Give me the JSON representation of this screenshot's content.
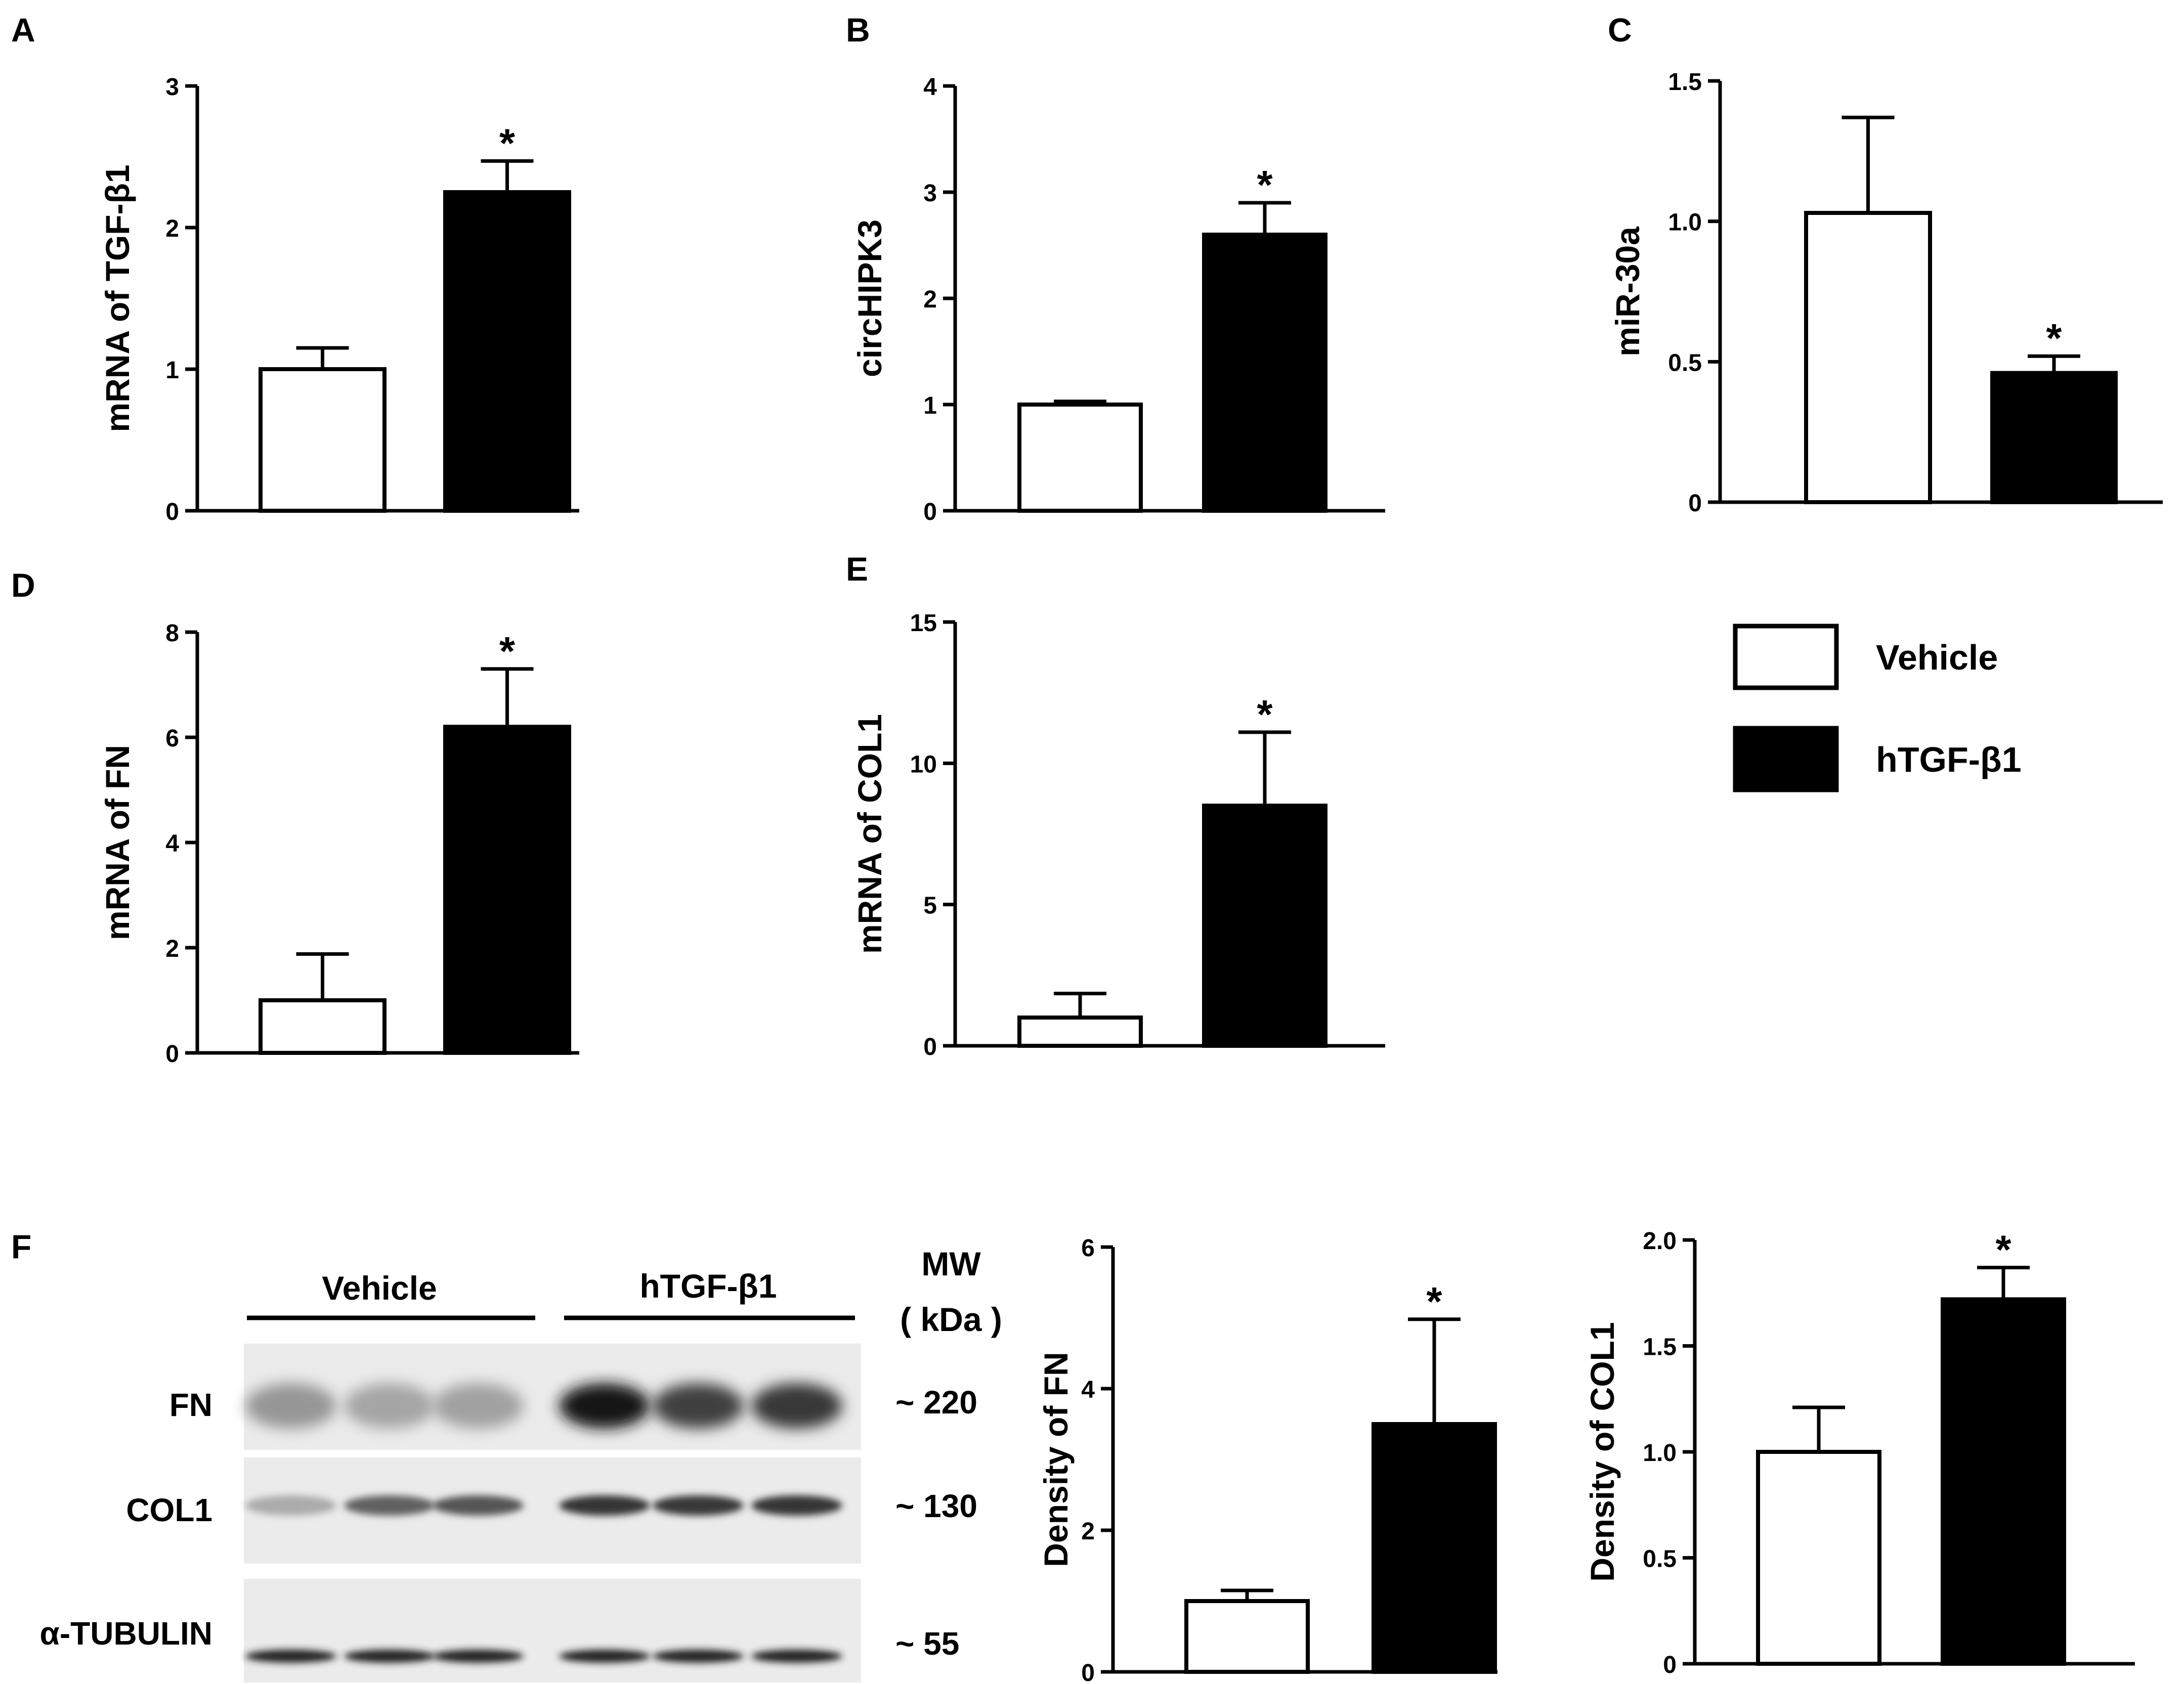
{
  "figure": {
    "legend": {
      "items": [
        {
          "label": "Vehicle",
          "fill": "#ffffff"
        },
        {
          "label": "hTGF-β1",
          "fill": "#000000"
        }
      ]
    },
    "western_blot": {
      "panel_label": "F",
      "groups": [
        "Vehicle",
        "hTGF-β1"
      ],
      "mw_header_line1": "MW",
      "mw_header_line2": "( kDa )",
      "rows": [
        {
          "label": "FN",
          "mw": "~ 220",
          "intensities": [
            0.35,
            0.28,
            0.3,
            0.95,
            0.75,
            0.78
          ]
        },
        {
          "label": "COL1",
          "mw": "~ 130",
          "intensities": [
            0.25,
            0.6,
            0.65,
            0.8,
            0.78,
            0.8
          ]
        },
        {
          "label": "α-TUBULIN",
          "mw": "~ 55",
          "intensities": [
            0.9,
            0.9,
            0.9,
            0.9,
            0.9,
            0.9
          ]
        }
      ]
    }
  },
  "chart_data": [
    {
      "panel": "A",
      "type": "bar",
      "ylabel": "mRNA of TGF-β1",
      "ylim": [
        0,
        3
      ],
      "yticks": [
        "0",
        "1",
        "2",
        "3"
      ],
      "series": [
        {
          "name": "Vehicle",
          "values": [
            1.0
          ],
          "errors": [
            0.15
          ]
        },
        {
          "name": "hTGF-β1",
          "values": [
            2.25
          ],
          "errors": [
            0.22
          ]
        }
      ],
      "annotations": [
        "",
        "*"
      ]
    },
    {
      "panel": "B",
      "type": "bar",
      "ylabel": "circHIPK3",
      "ylim": [
        0,
        4
      ],
      "yticks": [
        "0",
        "1",
        "2",
        "3",
        "4"
      ],
      "series": [
        {
          "name": "Vehicle",
          "values": [
            1.0
          ],
          "errors": [
            0.03
          ]
        },
        {
          "name": "hTGF-β1",
          "values": [
            2.6
          ],
          "errors": [
            0.3
          ]
        }
      ],
      "annotations": [
        "",
        "*"
      ]
    },
    {
      "panel": "C",
      "type": "bar",
      "ylabel": "miR-30a",
      "ylim": [
        0,
        1.5
      ],
      "yticks": [
        "0",
        "0.5",
        "1.0",
        "1.5"
      ],
      "series": [
        {
          "name": "Vehicle",
          "values": [
            1.03
          ],
          "errors": [
            0.34
          ]
        },
        {
          "name": "hTGF-β1",
          "values": [
            0.46
          ],
          "errors": [
            0.06
          ]
        }
      ],
      "annotations": [
        "",
        "*"
      ]
    },
    {
      "panel": "D",
      "type": "bar",
      "ylabel": "mRNA of  FN",
      "ylim": [
        0,
        8
      ],
      "yticks": [
        "0",
        "2",
        "4",
        "6",
        "8"
      ],
      "series": [
        {
          "name": "Vehicle",
          "values": [
            1.0
          ],
          "errors": [
            0.88
          ]
        },
        {
          "name": "hTGF-β1",
          "values": [
            6.2
          ],
          "errors": [
            1.1
          ]
        }
      ],
      "annotations": [
        "",
        "*"
      ]
    },
    {
      "panel": "E",
      "type": "bar",
      "ylabel": "mRNA of COL1",
      "ylim": [
        0,
        15
      ],
      "yticks": [
        "0",
        "5",
        "10",
        "15"
      ],
      "series": [
        {
          "name": "Vehicle",
          "values": [
            1.0
          ],
          "errors": [
            0.85
          ]
        },
        {
          "name": "hTGF-β1",
          "values": [
            8.5
          ],
          "errors": [
            2.6
          ]
        }
      ],
      "annotations": [
        "",
        "*"
      ]
    },
    {
      "panel": "",
      "type": "bar",
      "ylabel": "Density of FN",
      "ylim": [
        0,
        6
      ],
      "yticks": [
        "0",
        "2",
        "4",
        "6"
      ],
      "series": [
        {
          "name": "Vehicle",
          "values": [
            1.0
          ],
          "errors": [
            0.15
          ]
        },
        {
          "name": "hTGF-β1",
          "values": [
            3.5
          ],
          "errors": [
            1.48
          ]
        }
      ],
      "annotations": [
        "",
        "*"
      ]
    },
    {
      "panel": "",
      "type": "bar",
      "ylabel": "Density of COL1",
      "ylim": [
        0,
        2.0
      ],
      "yticks": [
        "0",
        "0.5",
        "1.0",
        "1.5",
        "2.0"
      ],
      "series": [
        {
          "name": "Vehicle",
          "values": [
            1.0
          ],
          "errors": [
            0.21
          ]
        },
        {
          "name": "hTGF-β1",
          "values": [
            1.72
          ],
          "errors": [
            0.15
          ]
        }
      ],
      "annotations": [
        "",
        "*"
      ]
    }
  ]
}
